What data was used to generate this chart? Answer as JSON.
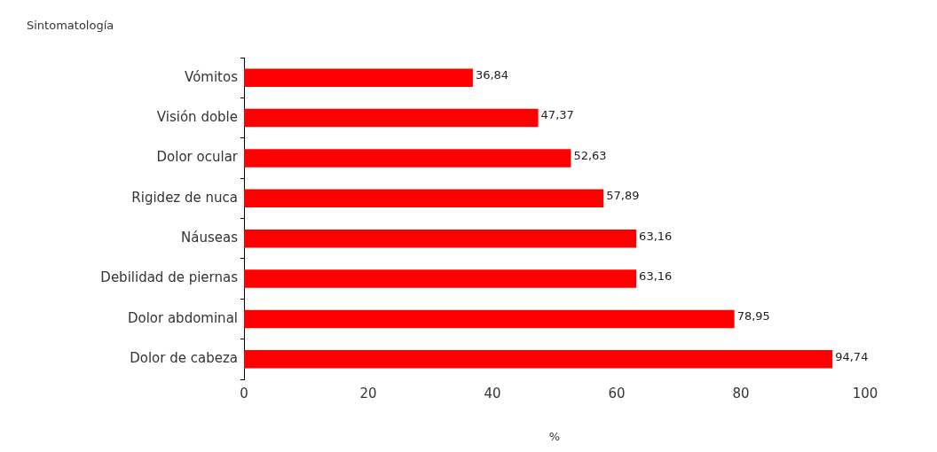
{
  "chart_data": {
    "type": "bar",
    "orientation": "horizontal",
    "ylabel": "Sintomatología",
    "xlabel": "%",
    "categories": [
      "Vómitos",
      "Visión doble",
      "Dolor ocular",
      "Rigidez de nuca",
      "Náuseas",
      "Debilidad de piernas",
      "Dolor abdominal",
      "Dolor de cabeza"
    ],
    "values": [
      36.84,
      47.37,
      52.63,
      57.89,
      63.16,
      63.16,
      78.95,
      94.74
    ],
    "value_labels": [
      "36,84",
      "47,37",
      "52,63",
      "57,89",
      "63,16",
      "63,16",
      "78,95",
      "94,74"
    ],
    "color": "#ff0000",
    "xlim": [
      0,
      100
    ],
    "xticks": [
      0,
      20,
      40,
      60,
      80,
      100
    ],
    "grid": false,
    "legend": false
  }
}
